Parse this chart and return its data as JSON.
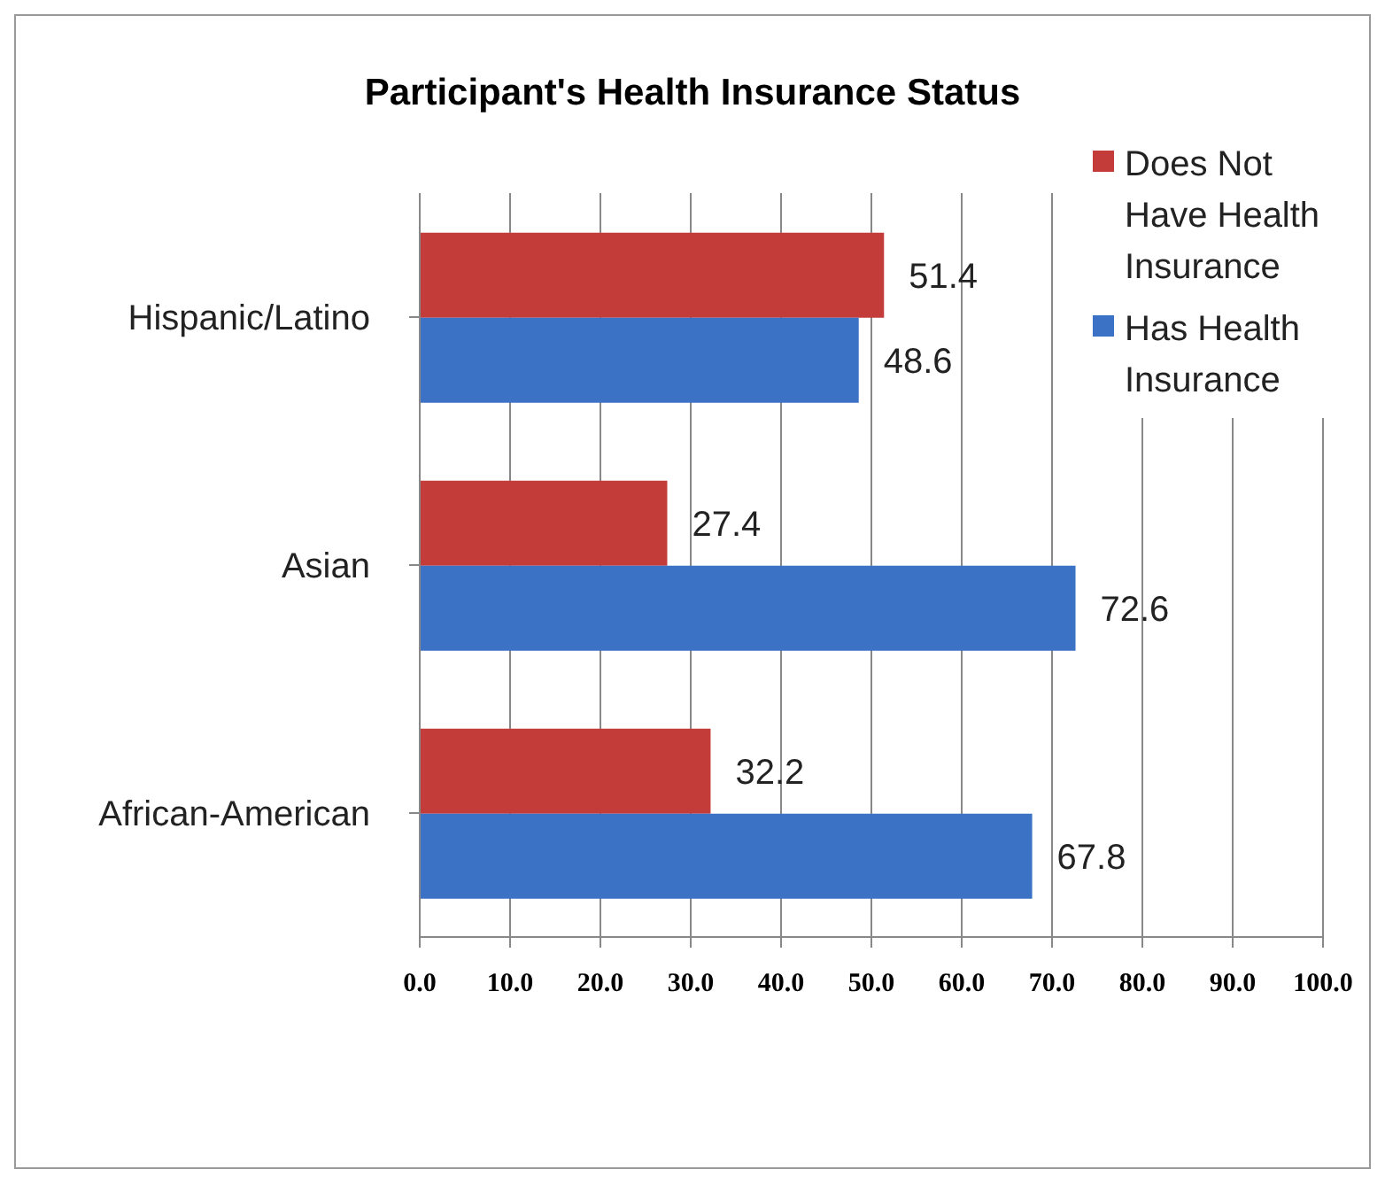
{
  "chart_data": {
    "type": "bar",
    "orientation": "horizontal",
    "title": "Participant's Health Insurance Status",
    "categories": [
      "Hispanic/Latino",
      "Asian",
      "African-American"
    ],
    "series": [
      {
        "name": "Does Not Have Health Insurance",
        "color": "#c43c3a",
        "values": [
          51.4,
          27.4,
          32.2
        ]
      },
      {
        "name": "Has Health Insurance",
        "color": "#3b72c6",
        "values": [
          48.6,
          72.6,
          67.8
        ]
      }
    ],
    "xlim": [
      0,
      100
    ],
    "xticks": [
      {
        "value": 0,
        "label": "0.0"
      },
      {
        "value": 10,
        "label": "10.0"
      },
      {
        "value": 20,
        "label": "20.0"
      },
      {
        "value": 30,
        "label": "30.0"
      },
      {
        "value": 40,
        "label": "40.0"
      },
      {
        "value": 50,
        "label": "50.0"
      },
      {
        "value": 60,
        "label": "60.0"
      },
      {
        "value": 70,
        "label": "70.0"
      },
      {
        "value": 80,
        "label": "80.0"
      },
      {
        "value": 90,
        "label": "90.0"
      },
      {
        "value": 100,
        "label": "100.0"
      }
    ],
    "grid": "x",
    "legend": "top right",
    "data_labels": true
  }
}
